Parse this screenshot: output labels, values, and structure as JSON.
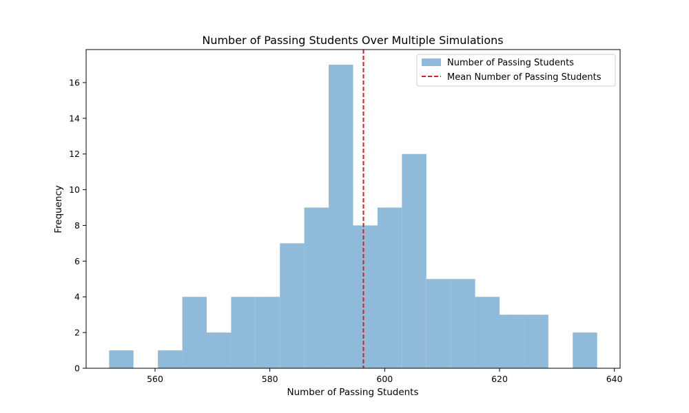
{
  "chart_data": {
    "type": "bar",
    "title": "Number of Passing Students Over Multiple Simulations",
    "xlabel": "Number of Passing Students",
    "ylabel": "Frequency",
    "xlim": [
      548,
      641
    ],
    "ylim": [
      0,
      17.85
    ],
    "xticks": [
      560,
      580,
      600,
      620,
      640
    ],
    "yticks": [
      0,
      2,
      4,
      6,
      8,
      10,
      12,
      14,
      16
    ],
    "bin_edges": [
      552.0,
      556.25,
      560.5,
      564.75,
      569.0,
      573.25,
      577.5,
      581.75,
      586.0,
      590.25,
      594.5,
      598.75,
      603.0,
      607.25,
      611.5,
      615.75,
      620.0,
      624.25,
      628.5,
      632.75,
      637.0
    ],
    "counts": [
      1,
      0,
      1,
      4,
      2,
      4,
      4,
      7,
      9,
      17,
      8,
      9,
      12,
      5,
      5,
      4,
      3,
      3,
      0,
      2
    ],
    "series": [
      {
        "name": "Number of Passing Students",
        "kind": "histogram",
        "color": "#8fbad9"
      },
      {
        "name": "Mean Number of Passing Students",
        "kind": "vline",
        "value": 596.3,
        "color": "#e31a1c",
        "style": "dashed"
      }
    ],
    "grid": false,
    "legend_position": "top-right"
  }
}
